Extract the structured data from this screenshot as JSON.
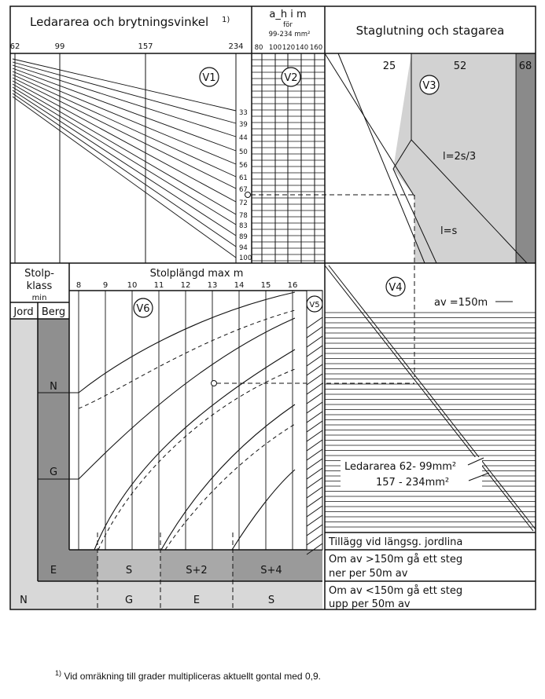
{
  "title": {
    "main": "Ledararea och brytningsvinkel",
    "main_note": "1)",
    "ah_label": "a_h i m",
    "ah_sub1": "för",
    "ah_sub2": "99-234 mm²",
    "stag": "Staglutning och stagarea"
  },
  "v1": {
    "label": "V1",
    "area_ticks": [
      "62",
      "99",
      "157",
      "234"
    ],
    "angle_ticks": [
      "33",
      "39",
      "44",
      "50",
      "56",
      "61",
      "67",
      "72",
      "78",
      "83",
      "89",
      "94",
      "100"
    ]
  },
  "v2": {
    "label": "V2",
    "ah_ticks": [
      "80",
      "100",
      "120",
      "140",
      "160"
    ]
  },
  "v3": {
    "label": "V3",
    "stag_areas": [
      "25",
      "52",
      "68"
    ],
    "line_l2s3": "l=2s/3",
    "line_ls": "l=s"
  },
  "v4": {
    "label": "V4",
    "av_label": "av =150m",
    "ledararea1": "Ledararea 62- 99mm²",
    "ledararea2": "157 - 234mm²"
  },
  "v5": {
    "label": "V5"
  },
  "v6": {
    "label": "V6",
    "header": "Stolplängd max m",
    "length_ticks": [
      "8",
      "9",
      "10",
      "11",
      "12",
      "13",
      "14",
      "15",
      "16"
    ]
  },
  "stolp": {
    "header1": "Stolp-",
    "header2": "klass",
    "header3": "min",
    "jord": "Jord",
    "berg": "Berg",
    "berg_classes": [
      "N",
      "G",
      "E"
    ],
    "bottom_row1": [
      "S",
      "S+2",
      "S+4"
    ],
    "bottom_row2": [
      "N",
      "G",
      "E",
      "S"
    ]
  },
  "tillagg": {
    "title": "Tillägg vid längsg. jordlina",
    "rule1_line1": "Om av >150m gå ett steg",
    "rule1_line2": "ner per 50m av",
    "rule2_line1": "Om av <150m gå ett steg",
    "rule2_line2": "upp per 50m av"
  },
  "footnote": {
    "mark": "1)",
    "text": " Vid omräkning till grader multipliceras aktuellt gontal med 0,9."
  },
  "colors": {
    "ink": "#111111",
    "shade": "#d2d2d2",
    "dark_shade": "#8a8a8a",
    "paper": "#ffffff"
  }
}
